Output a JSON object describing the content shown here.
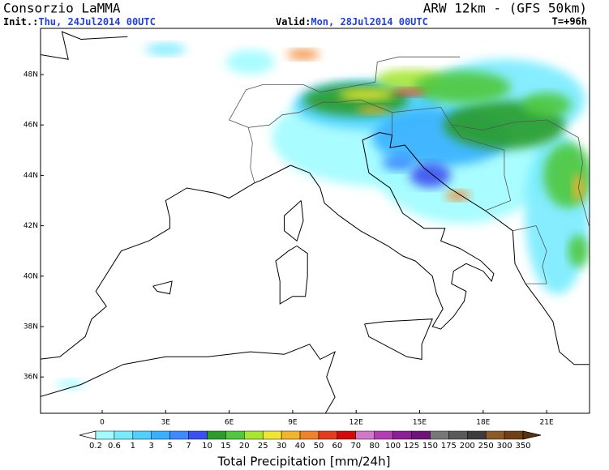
{
  "header": {
    "title": "Consorzio LaMMA",
    "model": "ARW 12km - (GFS 50km)",
    "init_label": "Init.:",
    "init_time": "Thu, 24Jul2014 00UTC",
    "valid_label": "Valid:",
    "valid_time": "Mon, 28Jul2014 00UTC",
    "lead_time": "T=+96h"
  },
  "map": {
    "lat_labels": [
      "48N",
      "46N",
      "44N",
      "42N",
      "40N",
      "38N",
      "36N"
    ],
    "lon_labels": [
      "0",
      "3E",
      "6E",
      "9E",
      "12E",
      "15E",
      "18E",
      "21E"
    ]
  },
  "colorbar": {
    "title": "Total Precipitation [mm/24h]",
    "levels": [
      0.2,
      0.6,
      1,
      3,
      5,
      7,
      10,
      15,
      20,
      25,
      30,
      40,
      50,
      60,
      70,
      80,
      100,
      125,
      150,
      175,
      200,
      250,
      300,
      350
    ],
    "under_color": "#ffffff",
    "colors": [
      "#a0fcff",
      "#78ecff",
      "#50d0ff",
      "#38b0ff",
      "#3c8cff",
      "#3c50f0",
      "#2c9c2c",
      "#50c83c",
      "#a8e632",
      "#f0e632",
      "#f0b42d",
      "#f08228",
      "#e63c1e",
      "#d20a0a",
      "#d278c8",
      "#b43cb4",
      "#8c1e96",
      "#6e1478",
      "#787878",
      "#5a5a5a",
      "#3c3c3c",
      "#8c5a28",
      "#6e4014"
    ],
    "over_color": "#5a3210"
  }
}
